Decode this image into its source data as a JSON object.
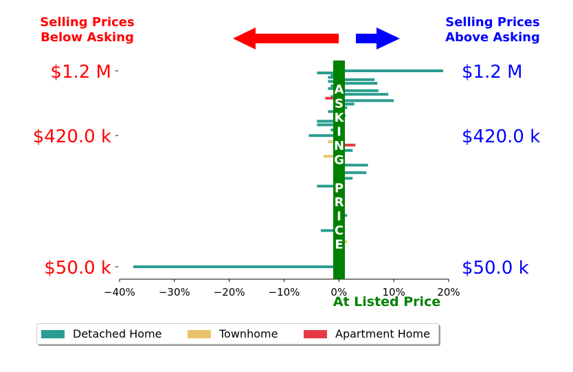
{
  "chart_data": {
    "type": "bar",
    "orientation": "horizontal",
    "header": {
      "left_label_line1": "Selling Prices",
      "left_label_line2": "Below Asking",
      "right_label_line1": "Selling Prices",
      "right_label_line2": "Above Asking"
    },
    "center_label": "ASKING PRICE",
    "xlabel": "At Listed Price",
    "xlim": [
      -40,
      20
    ],
    "xticks": [
      "−40%",
      "−30%",
      "−20%",
      "−10%",
      "0%",
      "10%",
      "20%"
    ],
    "xtick_values": [
      -40,
      -30,
      -20,
      -10,
      0,
      10,
      20
    ],
    "y_tick_labels": [
      "$1.2 M",
      "$420.0 k",
      "$50.0 k"
    ],
    "y_tick_values": [
      1200000,
      420000,
      50000
    ],
    "colors": {
      "detached": "#2a9d8f",
      "townhome": "#e9c46a",
      "apartment": "#e63946",
      "below": "#ff0000",
      "above": "#0000ff",
      "center": "#008000"
    },
    "legend": [
      {
        "name": "Detached Home",
        "key": "detached"
      },
      {
        "name": "Townhome",
        "key": "townhome"
      },
      {
        "name": "Apartment Home",
        "key": "apartment"
      }
    ],
    "series": [
      {
        "name": "Detached Home",
        "color": "#2a9d8f",
        "points": [
          {
            "price": 1200000,
            "pct": 19
          },
          {
            "price": 1160000,
            "pct": -4
          },
          {
            "price": 1120000,
            "pct": -1.5
          },
          {
            "price": 1080000,
            "pct": -2
          },
          {
            "price": 1040000,
            "pct": 6.5
          },
          {
            "price": 1010000,
            "pct": -2
          },
          {
            "price": 980000,
            "pct": 7
          },
          {
            "price": 940000,
            "pct": -1.5
          },
          {
            "price": 900000,
            "pct": -2
          },
          {
            "price": 870000,
            "pct": 7.2
          },
          {
            "price": 820000,
            "pct": 9
          },
          {
            "price": 790000,
            "pct": -1.5
          },
          {
            "price": 740000,
            "pct": 10
          },
          {
            "price": 700000,
            "pct": 2.8
          },
          {
            "price": 660000,
            "pct": 1.5
          },
          {
            "price": 620000,
            "pct": -2
          },
          {
            "price": 580000,
            "pct": 1.2
          },
          {
            "price": 530000,
            "pct": -4
          },
          {
            "price": 500000,
            "pct": -4
          },
          {
            "price": 460000,
            "pct": -1.5
          },
          {
            "price": 420000,
            "pct": -5.5
          },
          {
            "price": 330000,
            "pct": 2.5
          },
          {
            "price": 260000,
            "pct": 5.3
          },
          {
            "price": 230000,
            "pct": 5
          },
          {
            "price": 210000,
            "pct": 2.5
          },
          {
            "price": 185000,
            "pct": -4
          },
          {
            "price": 115000,
            "pct": 1.5
          },
          {
            "price": 90000,
            "pct": -3.3
          },
          {
            "price": 50000,
            "pct": -37.5
          }
        ]
      },
      {
        "name": "Townhome",
        "color": "#e9c46a",
        "points": [
          {
            "price": 380000,
            "pct": -2
          },
          {
            "price": 300000,
            "pct": -2.8
          },
          {
            "price": 75000,
            "pct": 1.5
          }
        ]
      },
      {
        "name": "Apartment Home",
        "color": "#e63946",
        "points": [
          {
            "price": 770000,
            "pct": -2.5
          },
          {
            "price": 360000,
            "pct": 3
          }
        ]
      }
    ]
  }
}
